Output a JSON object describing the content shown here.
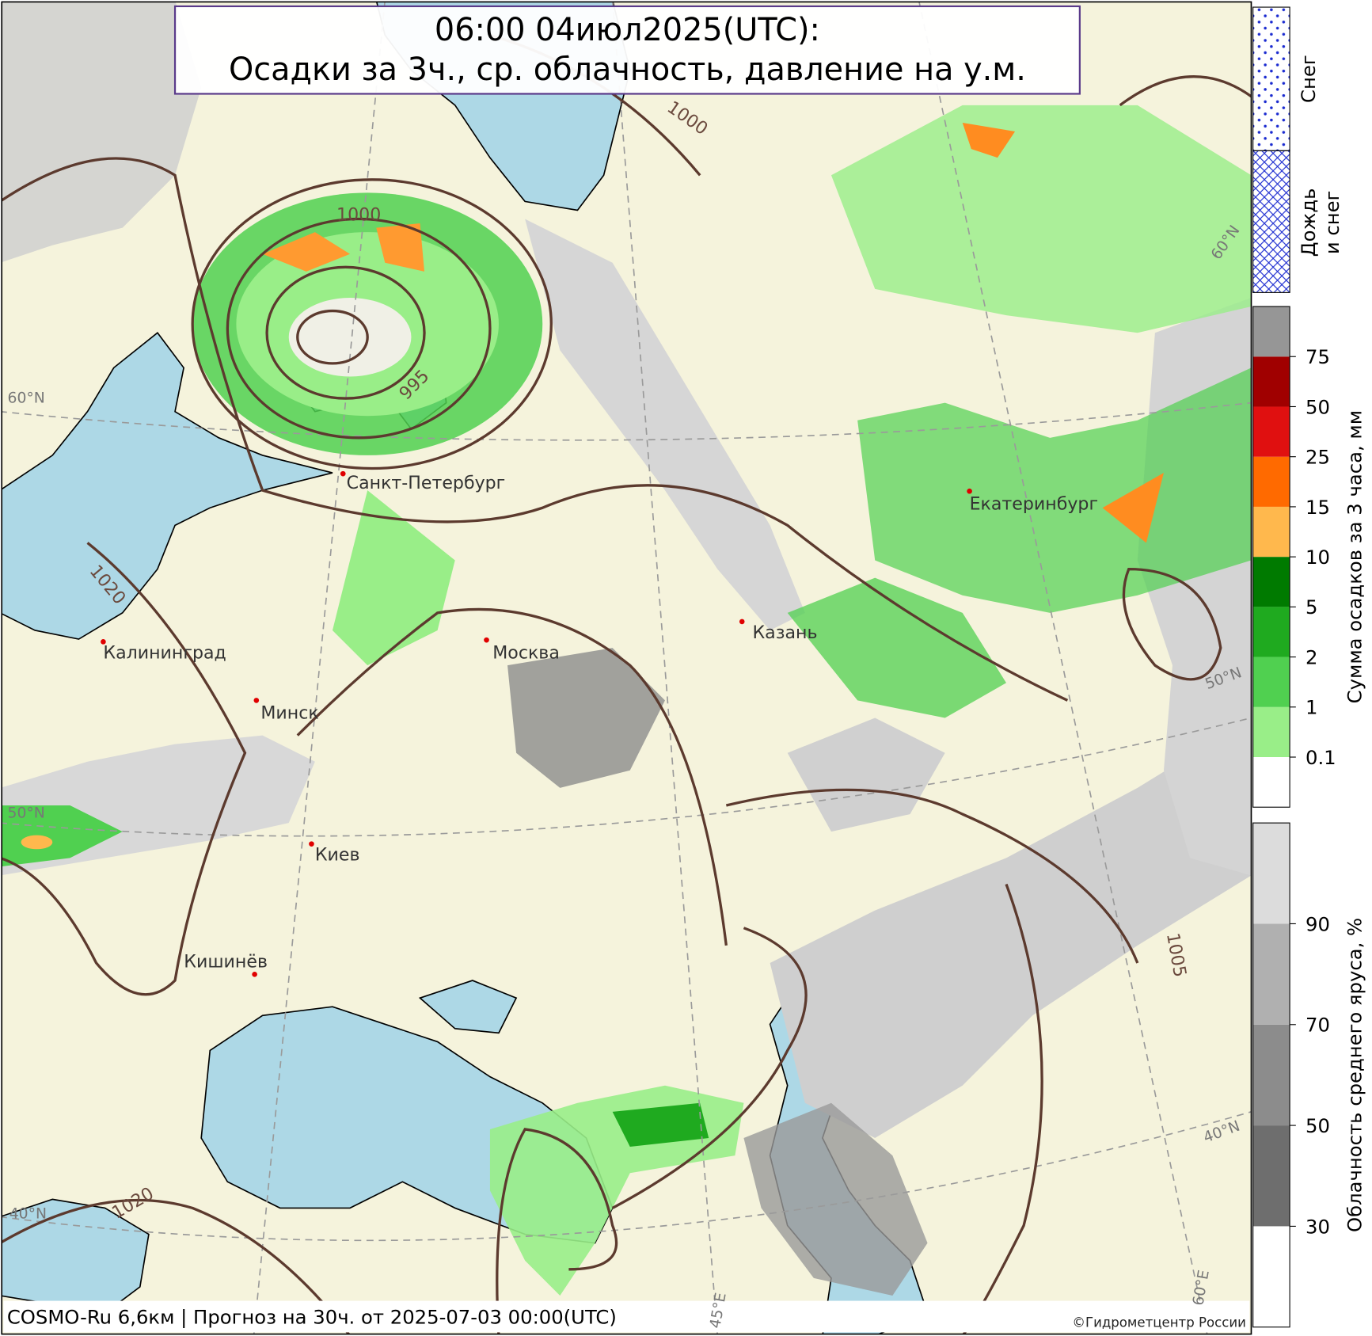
{
  "header": {
    "title_line1": "06:00 04июл2025(UTC):",
    "title_line2": "Осадки за 3ч., ср. облачность, давление на у.м."
  },
  "map": {
    "cities": [
      "Санкт-Петербург",
      "Калининград",
      "Минск",
      "Москва",
      "Казань",
      "Екатеринбург",
      "Киев",
      "Кишинёв"
    ],
    "isobar_labels": [
      "1000",
      "1000",
      "995",
      "1020",
      "1005",
      "1020"
    ],
    "grid_labels": [
      "60°N",
      "60°N",
      "50°N",
      "50°N",
      "40°N",
      "40°N",
      "45°E",
      "60°E"
    ]
  },
  "legend": {
    "snow": "Снег",
    "rain_snow": [
      "Дождь",
      "и снег"
    ],
    "precip": {
      "title": "Сумма осадков за 3 часа, мм",
      "ticks": [
        0.1,
        1,
        2,
        5,
        10,
        15,
        25,
        50,
        75
      ],
      "colors": [
        "#ffffff",
        "#99ee88",
        "#50d050",
        "#1faa1f",
        "#007a00",
        "#ffb84d",
        "#ff6a00",
        "#e01010",
        "#a00000",
        "#969696"
      ]
    },
    "cloud": {
      "title": "Облачность среднего яруса, %",
      "ticks": [
        30,
        50,
        70,
        90
      ],
      "colors": [
        "#ffffff",
        "#6e6e6e",
        "#8c8c8c",
        "#b0b0b0",
        "#dcdcdc"
      ]
    }
  },
  "footer": {
    "model": "COSMO-Ru 6,6км | Прогноз на  30ч. от 2025-07-03 00:00(UTC)",
    "copyright": "©Гидрометцентр России"
  }
}
